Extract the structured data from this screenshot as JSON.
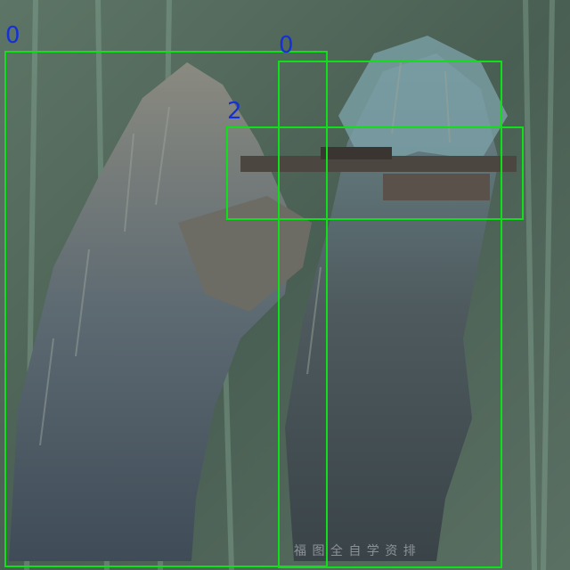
{
  "image": {
    "description_colors": {
      "background": "#4f6458",
      "box": "#10e01a",
      "label": "#1530d8"
    }
  },
  "detections": [
    {
      "class_label": "0",
      "icon": "person-left"
    },
    {
      "class_label": "0",
      "icon": "person-right"
    },
    {
      "class_label": "2",
      "icon": "rifle"
    }
  ],
  "watermark": {
    "text": "福 图 全 自 学 资 排"
  }
}
